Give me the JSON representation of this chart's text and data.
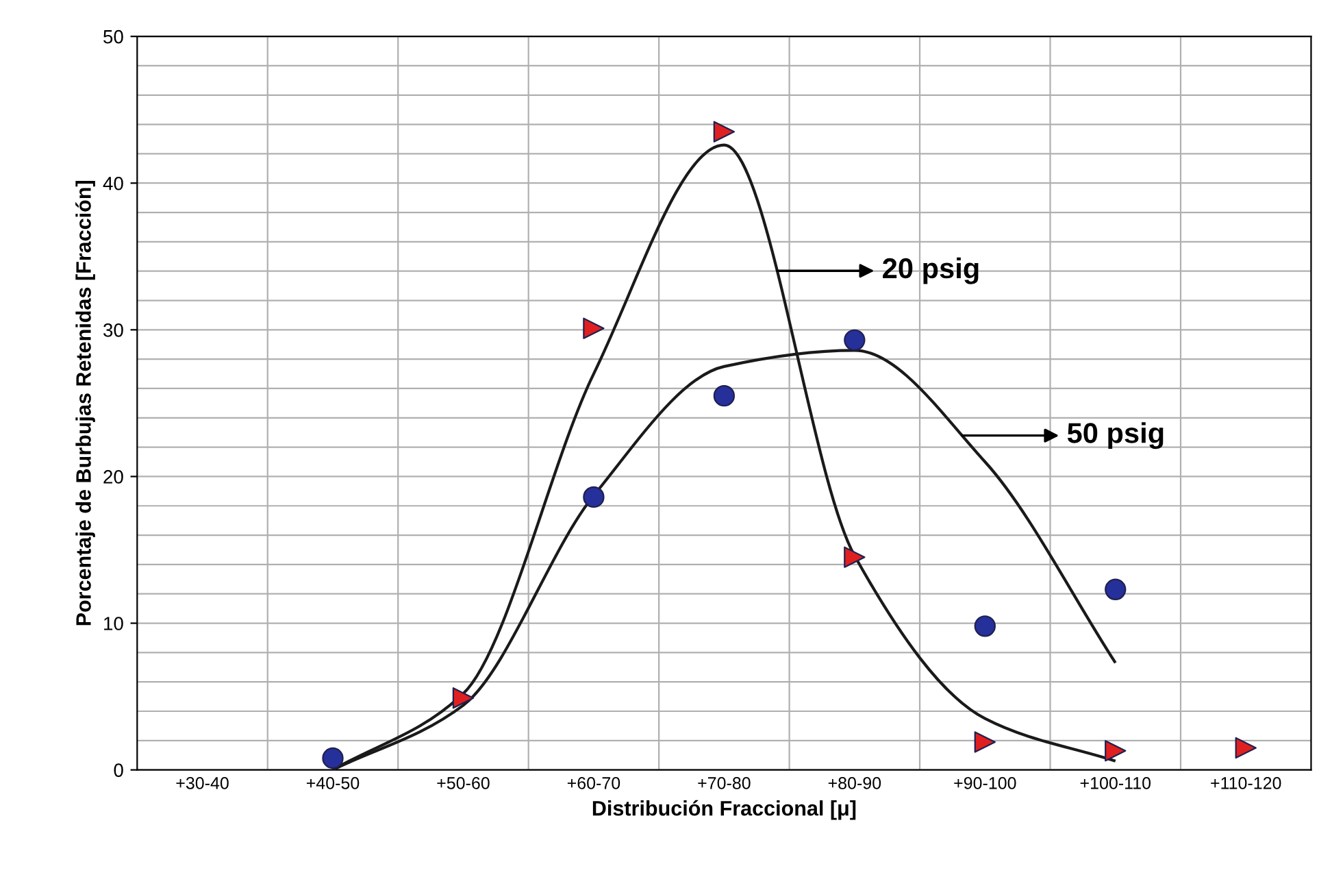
{
  "chart_data": {
    "type": "scatter",
    "xlabel": "Distribución Fraccional [μ]",
    "ylabel": "Porcentaje de Burbujas Retenidas [Fracción]",
    "categories": [
      "+30-40",
      "+40-50",
      "+50-60",
      "+60-70",
      "+70-80",
      "+80-90",
      "+90-100",
      "+100-110",
      "+110-120"
    ],
    "ylim": [
      0,
      50
    ],
    "yticks": [
      0,
      10,
      20,
      30,
      40,
      50,
      {
        "value": 2,
        "label": null
      },
      {
        "value": 4,
        "label": null
      },
      {
        "value": 6,
        "label": null
      },
      {
        "value": 8,
        "label": null
      },
      {
        "value": 12,
        "label": null
      },
      {
        "value": 14,
        "label": null
      },
      {
        "value": 16,
        "label": null
      },
      {
        "value": 18,
        "label": null
      },
      {
        "value": 22,
        "label": null
      },
      {
        "value": 24,
        "label": null
      },
      {
        "value": 26,
        "label": null
      },
      {
        "value": 28,
        "label": null
      },
      {
        "value": 32,
        "label": null
      },
      {
        "value": 34,
        "label": null
      },
      {
        "value": 36,
        "label": null
      },
      {
        "value": 38,
        "label": null
      },
      {
        "value": 42,
        "label": null
      },
      {
        "value": 44,
        "label": null
      },
      {
        "value": 46,
        "label": null
      },
      {
        "value": 48,
        "label": null
      }
    ],
    "grid": true,
    "series": [
      {
        "type": "line",
        "color": "#1a1a1a",
        "marker": "none",
        "values": [
          null,
          0,
          5.2,
          27,
          42.6,
          14.6,
          3.5,
          0.6,
          null
        ]
      },
      {
        "type": "line",
        "color": "#1a1a1a",
        "marker": "none",
        "values": [
          null,
          0,
          4.4,
          18.7,
          27.5,
          28.6,
          21,
          7.3,
          null
        ]
      },
      {
        "color": "#e02020",
        "marker": "triangle",
        "values": [
          null,
          null,
          4.9,
          30.1,
          43.5,
          14.5,
          1.9,
          1.3,
          1.5
        ]
      },
      {
        "color": "#26309a",
        "marker": "circle",
        "values": [
          null,
          0.8,
          null,
          18.6,
          25.5,
          29.3,
          9.8,
          12.3,
          null
        ]
      }
    ],
    "annotations": [
      "20 psig",
      "50 psig"
    ]
  }
}
